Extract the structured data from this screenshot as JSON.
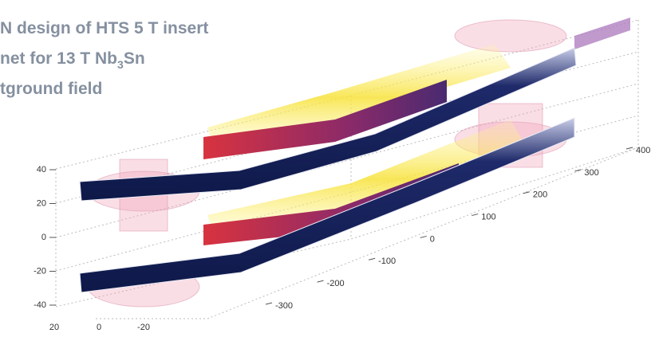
{
  "title": {
    "line1": "N design of HTS 5 T insert",
    "line2": {
      "before": "net for 13 T Nb",
      "sub": "3",
      "after": "Sn"
    },
    "line3": "tground field"
  },
  "axes": {
    "vertical": [
      40,
      20,
      0,
      -20,
      -40
    ],
    "depth": [
      20,
      0,
      -20
    ],
    "length": [
      -300,
      -200,
      -100,
      0,
      100,
      200,
      300,
      400
    ]
  }
}
